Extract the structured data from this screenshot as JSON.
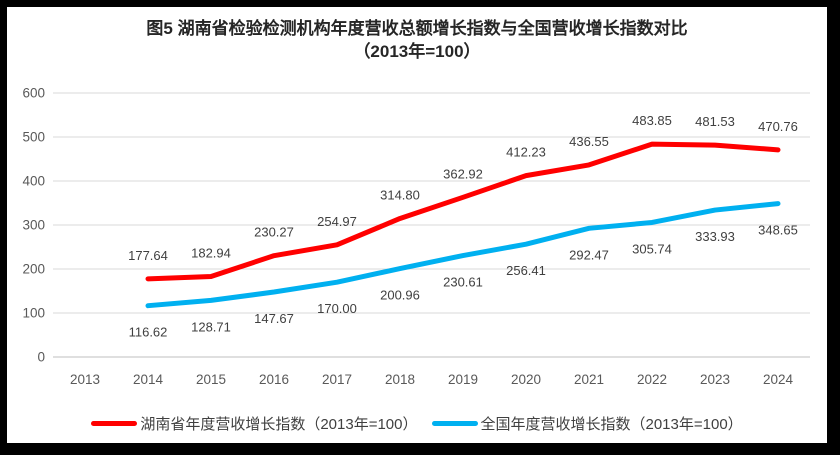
{
  "frame": {
    "border_color": "#000000",
    "background": "#ffffff"
  },
  "chart_data": {
    "type": "line",
    "title": "图5 湖南省检验检测机构年度营收总额增长指数与全国营收增长指数对比",
    "subtitle": "（2013年=100）",
    "categories": [
      "2013",
      "2014",
      "2015",
      "2016",
      "2017",
      "2018",
      "2019",
      "2020",
      "2021",
      "2022",
      "2023",
      "2024"
    ],
    "series": [
      {
        "name": "湖南省年度营收增长指数（2013年=100）",
        "color": "#FF0000",
        "label_position": "above",
        "values": [
          null,
          177.64,
          182.94,
          230.27,
          254.97,
          314.8,
          362.92,
          412.23,
          436.55,
          483.85,
          481.53,
          470.76
        ]
      },
      {
        "name": "全国年度营收增长指数（2013年=100）",
        "color": "#00B0F0",
        "label_position": "below",
        "values": [
          null,
          116.62,
          128.71,
          147.67,
          170.0,
          200.96,
          230.61,
          256.41,
          292.47,
          305.74,
          333.93,
          348.65
        ]
      }
    ],
    "ylim": [
      0,
      600
    ],
    "yticks": [
      0,
      100,
      200,
      300,
      400,
      500,
      600
    ],
    "grid": true,
    "legend_position": "bottom",
    "axis_label_color": "#595959",
    "data_label_color": "#404040",
    "gridline_color": "#D9D9D9",
    "baseline_color": "#BFBFBF"
  }
}
